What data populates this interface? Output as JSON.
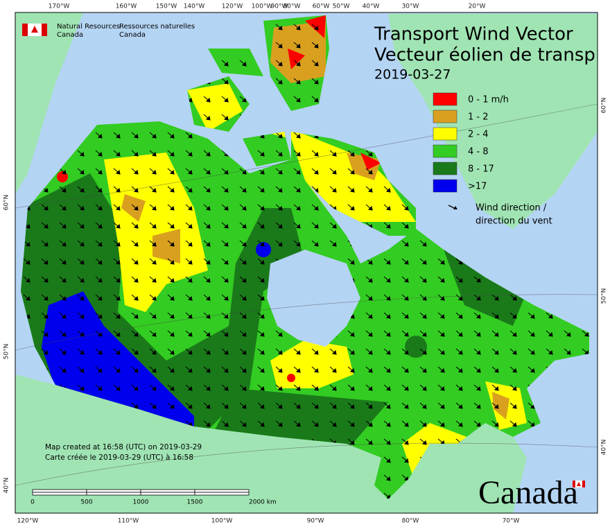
{
  "header": {
    "org_en": [
      "Natural Resources",
      "Canada"
    ],
    "org_fr": [
      "Ressources naturelles",
      "Canada"
    ]
  },
  "title": {
    "lines": [
      "Transport Wind Vector",
      "Vecteur éolien de transp"
    ],
    "date": "2019-03-27"
  },
  "legend": {
    "items": [
      {
        "label": "0 - 1 m/h",
        "color": "#ff0000"
      },
      {
        "label": "1 - 2",
        "color": "#d9a020"
      },
      {
        "label": "2 - 4",
        "color": "#ffff00"
      },
      {
        "label": "4 - 8",
        "color": "#33cc22"
      },
      {
        "label": "8 - 17",
        "color": "#1a7a1a"
      },
      {
        "label": ">17",
        "color": "#0000ee"
      }
    ],
    "wind": [
      "Wind direction /",
      "direction du vent"
    ]
  },
  "graticule": {
    "top": [
      "170°W",
      "160°W",
      "150°W",
      "140°W",
      "120°W",
      "100°W",
      "90°W",
      "80°W",
      "60°W",
      "50°W",
      "40°W",
      "30°W",
      "20°W"
    ],
    "bottom": [
      "120°W",
      "110°W",
      "100°W",
      "90°W",
      "80°W",
      "70°W"
    ],
    "left": [
      "60°N",
      "50°N",
      "40°N"
    ],
    "right": [
      "60°N",
      "50°N",
      "40°N"
    ]
  },
  "footer": {
    "created": [
      "Map created at 16:58 (UTC) on 2019-03-29",
      "Carte créée le 2019-03-29 (UTC) à 16:58"
    ]
  },
  "scale_bar": {
    "labels": [
      "0",
      "500",
      "1000",
      "1500",
      "2000 km"
    ]
  },
  "wordmark": "Canada"
}
